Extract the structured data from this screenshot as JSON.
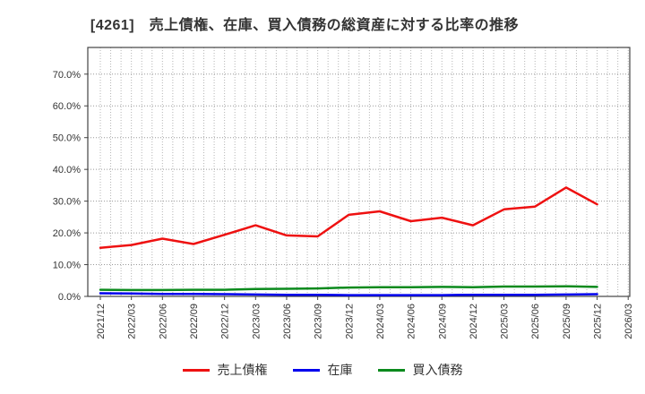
{
  "title": "[4261]　売上債権、在庫、買入債務の総資産に対する比率の推移",
  "chart_data": {
    "type": "line",
    "title": "[4261]　売上債権、在庫、買入債務の総資産に対する比率の推移",
    "xlabel": "",
    "ylabel": "",
    "x_tick_labels": [
      "2021/12",
      "2022/03",
      "2022/06",
      "2022/09",
      "2022/12",
      "2023/03",
      "2023/06",
      "2023/09",
      "2023/12",
      "2024/03",
      "2024/06",
      "2024/09",
      "2024/12",
      "2025/03",
      "2025/06",
      "2025/09",
      "2025/12",
      "2026/03"
    ],
    "categories": [
      "2021/12",
      "2022/03",
      "2022/06",
      "2022/09",
      "2022/12",
      "2023/03",
      "2023/06",
      "2023/09",
      "2023/12",
      "2024/03",
      "2024/06",
      "2024/09",
      "2024/12",
      "2025/03",
      "2025/06",
      "2025/09",
      "2025/12"
    ],
    "series": [
      {
        "key": "uriage-saiken",
        "name": "売上債権",
        "color": "#ee1111",
        "values": [
          15.3,
          16.2,
          18.2,
          16.5,
          19.4,
          22.4,
          19.2,
          18.9,
          25.7,
          26.8,
          23.7,
          24.8,
          22.4,
          27.4,
          28.3,
          34.3,
          29.0
        ]
      },
      {
        "key": "zaiko",
        "name": "在庫",
        "color": "#0000ee",
        "values": [
          1.0,
          0.9,
          0.8,
          0.8,
          0.7,
          0.6,
          0.5,
          0.5,
          0.4,
          0.4,
          0.4,
          0.4,
          0.5,
          0.5,
          0.5,
          0.6,
          0.7
        ]
      },
      {
        "key": "kaiire-saimu",
        "name": "買入債務",
        "color": "#0b8a1d",
        "values": [
          2.1,
          2.0,
          2.0,
          2.1,
          2.1,
          2.3,
          2.4,
          2.5,
          2.8,
          2.9,
          2.9,
          3.0,
          2.9,
          3.1,
          3.1,
          3.2,
          3.0
        ]
      }
    ],
    "y_tick_labels": [
      "0.0%",
      "10.0%",
      "20.0%",
      "30.0%",
      "40.0%",
      "50.0%",
      "60.0%",
      "70.0%"
    ],
    "y_tick_values": [
      0,
      10,
      20,
      30,
      40,
      50,
      60,
      70
    ],
    "ylim": [
      0,
      78.4
    ],
    "grid": "dotted, horizontal every 10%, vertical monthly",
    "legend_position": "bottom-center"
  },
  "legend": {
    "items": [
      {
        "label": "売上債権",
        "color": "#ee1111"
      },
      {
        "label": "在庫",
        "color": "#0000ee"
      },
      {
        "label": "買入債務",
        "color": "#0b8a1d"
      }
    ]
  },
  "colors": {
    "background": "#ffffff",
    "frame": "#444444",
    "grid_h": "#999999",
    "grid_v": "#b5b5b5",
    "tick_text": "#333333",
    "title_text": "#333333"
  }
}
